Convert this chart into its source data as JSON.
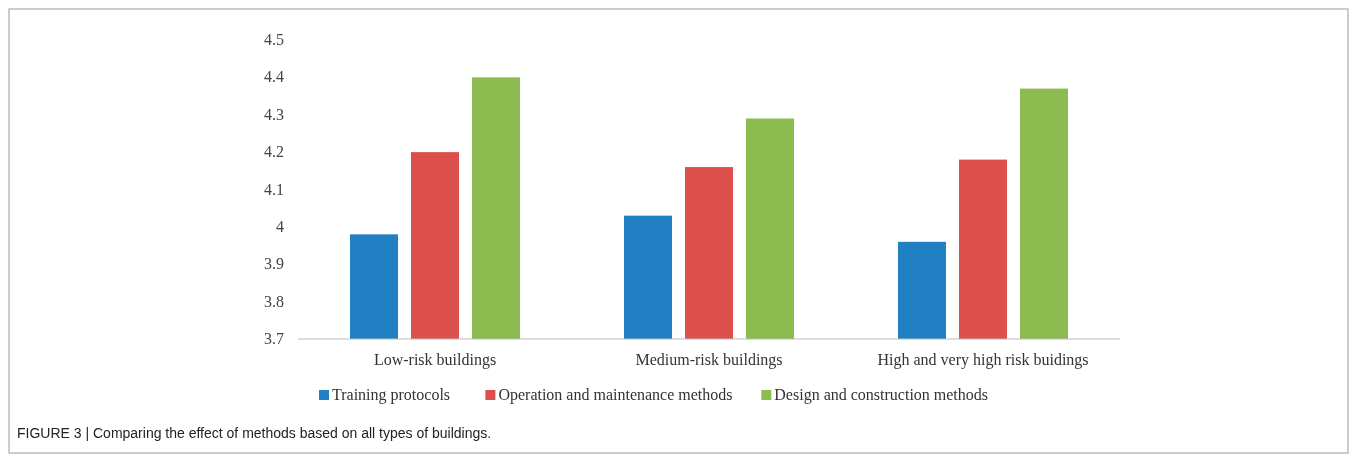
{
  "chart_data": {
    "type": "bar",
    "categories": [
      "Low-risk buildings",
      "Medium-risk buildings",
      "High and very high risk buidings"
    ],
    "series": [
      {
        "name": "Training protocols",
        "color": "#2180c4",
        "values": [
          3.98,
          4.03,
          3.96
        ]
      },
      {
        "name": "Operation and maintenance methods",
        "color": "#dc4f4b",
        "values": [
          4.2,
          4.16,
          4.18
        ]
      },
      {
        "name": "Design and construction methods",
        "color": "#8cbb50",
        "values": [
          4.4,
          4.29,
          4.37
        ]
      }
    ],
    "ylim": [
      3.7,
      4.5
    ],
    "yticks": [
      {
        "value": 3.7,
        "label": "3.7"
      },
      {
        "value": 3.8,
        "label": "3.8"
      },
      {
        "value": 3.9,
        "label": "3.9"
      },
      {
        "value": 4,
        "label": "4"
      },
      {
        "value": 4.1,
        "label": "4.1"
      },
      {
        "value": 4.2,
        "label": "4.2"
      },
      {
        "value": 4.3,
        "label": "4.3"
      },
      {
        "value": 4.4,
        "label": "4.4"
      },
      {
        "value": 4.5,
        "label": "4.5"
      }
    ],
    "grid": false,
    "legend": "bottom",
    "annotations": [
      "FIGURE 3 | Comparing the effect of methods based on all types of buildings."
    ]
  }
}
